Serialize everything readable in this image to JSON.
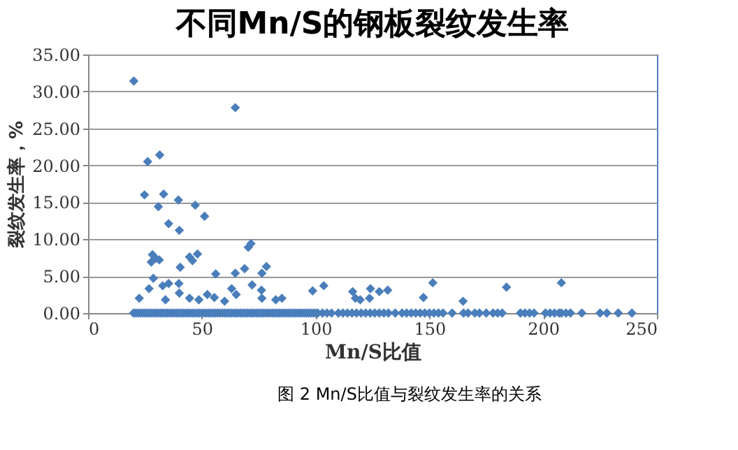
{
  "chart_data": {
    "type": "scatter",
    "title": "不同Mn/S的钢板裂纹发生率",
    "xlabel": "Mn/S比值",
    "ylabel": "裂纹发生率，%",
    "annotations": [
      "图 2 Mn/S比值与裂纹发生率的关系"
    ],
    "x": [
      20.1,
      64.7,
      26.2,
      31.5,
      24.8,
      33.2,
      30.9,
      39.7,
      47.1,
      51.2,
      35.4,
      40.1,
      28.3,
      29.7,
      31.3,
      27.8,
      44.6,
      48.1,
      45.9,
      40.5,
      56.1,
      70.4,
      71.6,
      68.8,
      64.7,
      78.4,
      76.4,
      72.1,
      63.1,
      65.1,
      28.7,
      26.8,
      32.8,
      35.4,
      39.9,
      22.5,
      40.1,
      34.0,
      44.6,
      48.7,
      52.4,
      55.5,
      60,
      76.2,
      76.4,
      82.5,
      85.2,
      98.7,
      103.6,
      116.3,
      117.5,
      119.6,
      123.7,
      124.1,
      128,
      131.7,
      147.4,
      151.5,
      164.8,
      183.9,
      208,
      20,
      21,
      22,
      23,
      24,
      25,
      26,
      27,
      28,
      29,
      30,
      31,
      32,
      33,
      34,
      35,
      36,
      37,
      38,
      39,
      40,
      41,
      42,
      43,
      44,
      45,
      46,
      47,
      48,
      49,
      50,
      51,
      52,
      53,
      54,
      55,
      56,
      57,
      58,
      59,
      60,
      61,
      62,
      63,
      64,
      65,
      66,
      67,
      68,
      69,
      70,
      71,
      72,
      73,
      74,
      75,
      76,
      77,
      78,
      79,
      80,
      81,
      82,
      83,
      84,
      85,
      86,
      87,
      88,
      89,
      90,
      91,
      92,
      93,
      94,
      95,
      96,
      97,
      98,
      99,
      100,
      101,
      103,
      105,
      107,
      110,
      112,
      114,
      116,
      118,
      120,
      122,
      124,
      126,
      128,
      130,
      132,
      135,
      138,
      140,
      142,
      144,
      146,
      148,
      150,
      152,
      154,
      156,
      160,
      165,
      167,
      170,
      172,
      175,
      178,
      180,
      182,
      190,
      192,
      194,
      196,
      201,
      203,
      205,
      207,
      208,
      210,
      212,
      217,
      225,
      228,
      233,
      239
    ],
    "series": [
      {
        "color": "#4a7ebb",
        "values": [
          31.4,
          27.8,
          20.5,
          21.4,
          16.0,
          16.1,
          14.4,
          15.3,
          14.6,
          13.1,
          12.1,
          11.2,
          7.9,
          7.4,
          7.2,
          6.9,
          7.6,
          8.0,
          7.1,
          6.2,
          5.3,
          8.9,
          9.4,
          6.0,
          5.4,
          6.3,
          5.4,
          3.8,
          3.3,
          2.5,
          4.7,
          3.3,
          3.7,
          4.0,
          4.0,
          2.0,
          2.7,
          1.8,
          2.0,
          1.8,
          2.5,
          2.1,
          1.6,
          3.1,
          2.0,
          1.8,
          2.0,
          3.0,
          3.7,
          2.9,
          2.0,
          1.8,
          2.0,
          3.3,
          2.9,
          3.1,
          2.1,
          4.1,
          1.6,
          3.5,
          4.1,
          0,
          0,
          0,
          0,
          0,
          0,
          0,
          0,
          0,
          0,
          0,
          0,
          0,
          0,
          0,
          0,
          0,
          0,
          0,
          0,
          0,
          0,
          0,
          0,
          0,
          0,
          0,
          0,
          0,
          0,
          0,
          0,
          0,
          0,
          0,
          0,
          0,
          0,
          0,
          0,
          0,
          0,
          0,
          0,
          0,
          0,
          0,
          0,
          0,
          0,
          0,
          0,
          0,
          0,
          0,
          0,
          0,
          0,
          0,
          0,
          0,
          0,
          0,
          0,
          0,
          0,
          0,
          0,
          0,
          0,
          0,
          0,
          0,
          0,
          0,
          0,
          0,
          0,
          0,
          0,
          0,
          0,
          0,
          0,
          0,
          0,
          0,
          0,
          0,
          0,
          0,
          0,
          0,
          0,
          0,
          0,
          0,
          0,
          0,
          0,
          0,
          0,
          0,
          0,
          0,
          0,
          0,
          0,
          0,
          0,
          0,
          0,
          0,
          0,
          0,
          0,
          0,
          0,
          0,
          0,
          0,
          0,
          0,
          0,
          0,
          0,
          0,
          0,
          0,
          0,
          0,
          0,
          0
        ]
      }
    ],
    "xlim": [
      0,
      250
    ],
    "xticks": [
      0,
      50,
      100,
      150,
      200,
      250
    ],
    "ylim": [
      0,
      35
    ],
    "yticks": [
      {
        "value": 0,
        "label": "0.00"
      },
      {
        "value": 5,
        "label": "5.00"
      },
      {
        "value": 10,
        "label": "10.00"
      },
      {
        "value": 15,
        "label": "15.00"
      },
      {
        "value": 20,
        "label": "20.00"
      },
      {
        "value": 25,
        "label": "25.00"
      },
      {
        "value": 30,
        "label": "30.00"
      },
      {
        "value": 35,
        "label": "35.00"
      }
    ],
    "grid": "y",
    "marker": "diamond",
    "legend": false
  }
}
